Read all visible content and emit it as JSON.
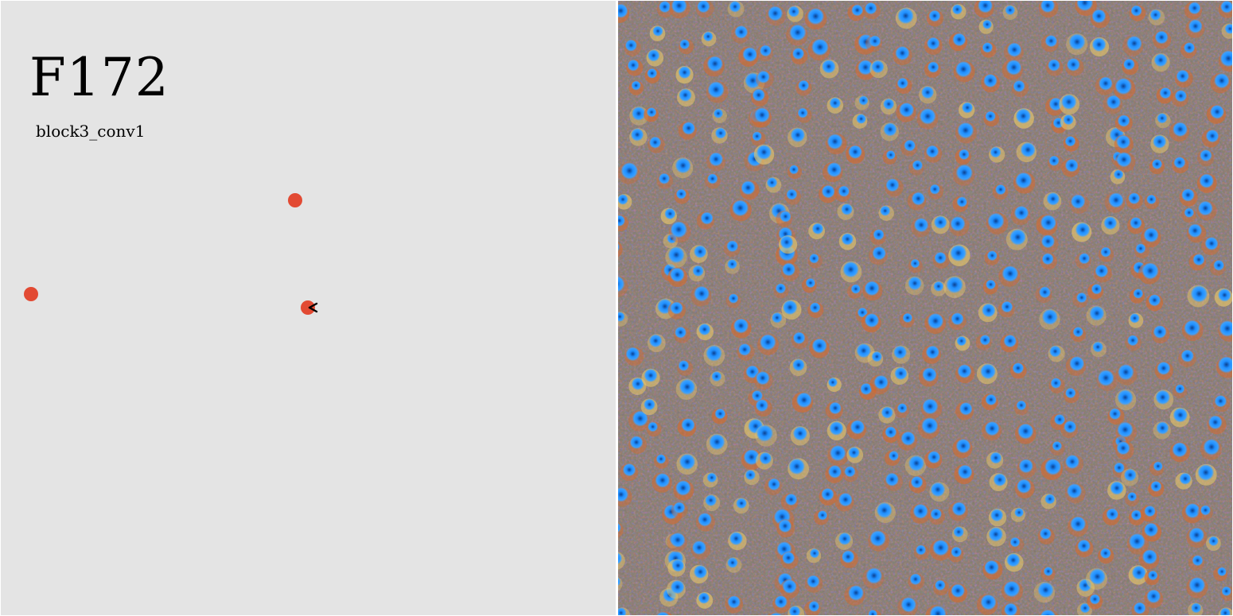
{
  "feature": {
    "title": "F172",
    "layer": "block3_conv1"
  },
  "scatter": {
    "point_color": "#e24a33",
    "points": [
      "point-a",
      "point-b",
      "point-c"
    ]
  },
  "visualization": {
    "background_color": "#8a8a86",
    "dot_color": "#1f8fff",
    "dark_core_color": "#0b3f8f",
    "fringe_color": "#d46a2e",
    "highlight_color": "#e8c86a"
  },
  "cursor": {
    "icon": "arrow-cursor-icon"
  }
}
